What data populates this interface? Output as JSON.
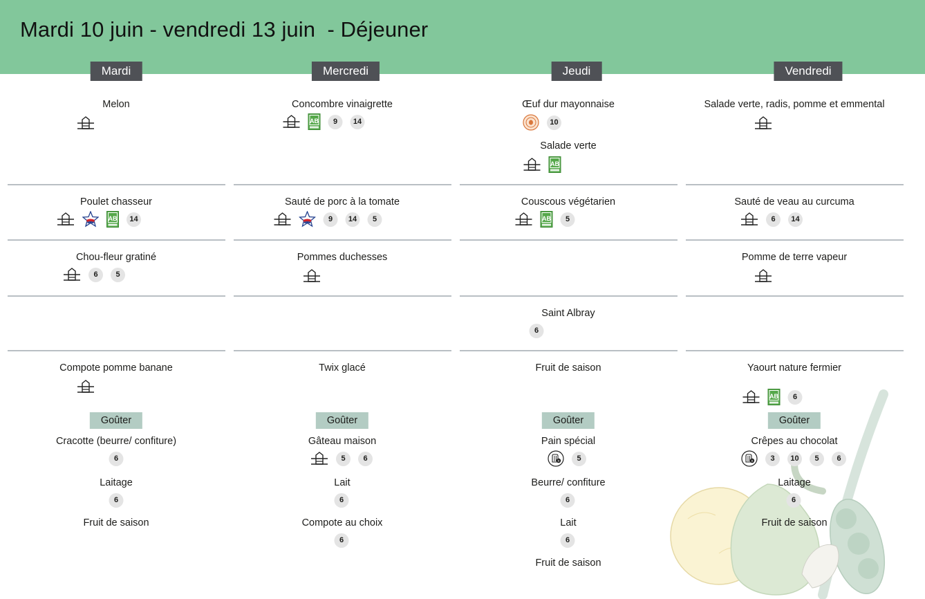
{
  "title": "Mardi 10 juin - vendredi 13 juin  - Déjeuner",
  "days": [
    "Mardi",
    "Mercredi",
    "Jeudi",
    "Vendredi"
  ],
  "gouter_label": "Goûter",
  "dishes": {
    "mardi": {
      "entree": "Melon",
      "plat": "Poulet chasseur",
      "accomp": "Chou-fleur gratiné",
      "dessert": "Compote pomme banane",
      "g1": "Cracotte (beurre/ confiture)",
      "g2": "Laitage",
      "g3": "Fruit de saison",
      "tags": {
        "plat": "14",
        "accomp_a": "6",
        "accomp_b": "5",
        "g1": "6",
        "g2": "6"
      }
    },
    "mercredi": {
      "entree": "Concombre vinaigrette",
      "plat": "Sauté de porc  à la tomate",
      "accomp": "Pommes duchesses",
      "dessert": "Twix glacé",
      "g1": "Gâteau maison",
      "g2": "Lait",
      "g3": "Compote au choix",
      "tags": {
        "entree_a": "9",
        "entree_b": "14",
        "plat_a": "9",
        "plat_b": "14",
        "plat_c": "5",
        "g1_a": "5",
        "g1_b": "6",
        "g2": "6",
        "g3": "6"
      }
    },
    "jeudi": {
      "entree": "Œuf dur mayonnaise",
      "entree2": "Salade verte",
      "plat": "Couscous végétarien",
      "fromage": "Saint Albray",
      "dessert": "Fruit de saison",
      "g1": "Pain spécial",
      "g2": "Beurre/ confiture",
      "g3": "Lait",
      "g4": "Fruit de saison",
      "tags": {
        "entree": "10",
        "plat": "5",
        "fromage": "6",
        "g1": "5",
        "g2": "6",
        "g3": "6"
      }
    },
    "vendredi": {
      "entree": "Salade verte, radis, pomme et emmental",
      "plat": "Sauté de veau au curcuma",
      "accomp": "Pomme de terre vapeur",
      "dessert": "Yaourt nature fermier",
      "g1": "Crêpes au chocolat",
      "g2": "Laitage",
      "g3": "Fruit de saison",
      "tags": {
        "plat_a": "6",
        "plat_b": "14",
        "dessert": "6",
        "g1_a": "3",
        "g1_b": "10",
        "g1_c": "5",
        "g1_d": "6",
        "g2": "6"
      }
    }
  },
  "icons": {
    "fait_maison": "fait-maison-icon",
    "bio": "agriculture-bio-icon",
    "label_rouge": "label-rouge-icon",
    "oeuf": "oeuf-plein-air-icon",
    "pain_special": "pain-special-icon"
  },
  "colors": {
    "header": "#82c79b",
    "day_label": "#4f5156",
    "gouter": "#b3ccc3",
    "badge": "#e4e4e4",
    "bio": "#55a84a"
  }
}
